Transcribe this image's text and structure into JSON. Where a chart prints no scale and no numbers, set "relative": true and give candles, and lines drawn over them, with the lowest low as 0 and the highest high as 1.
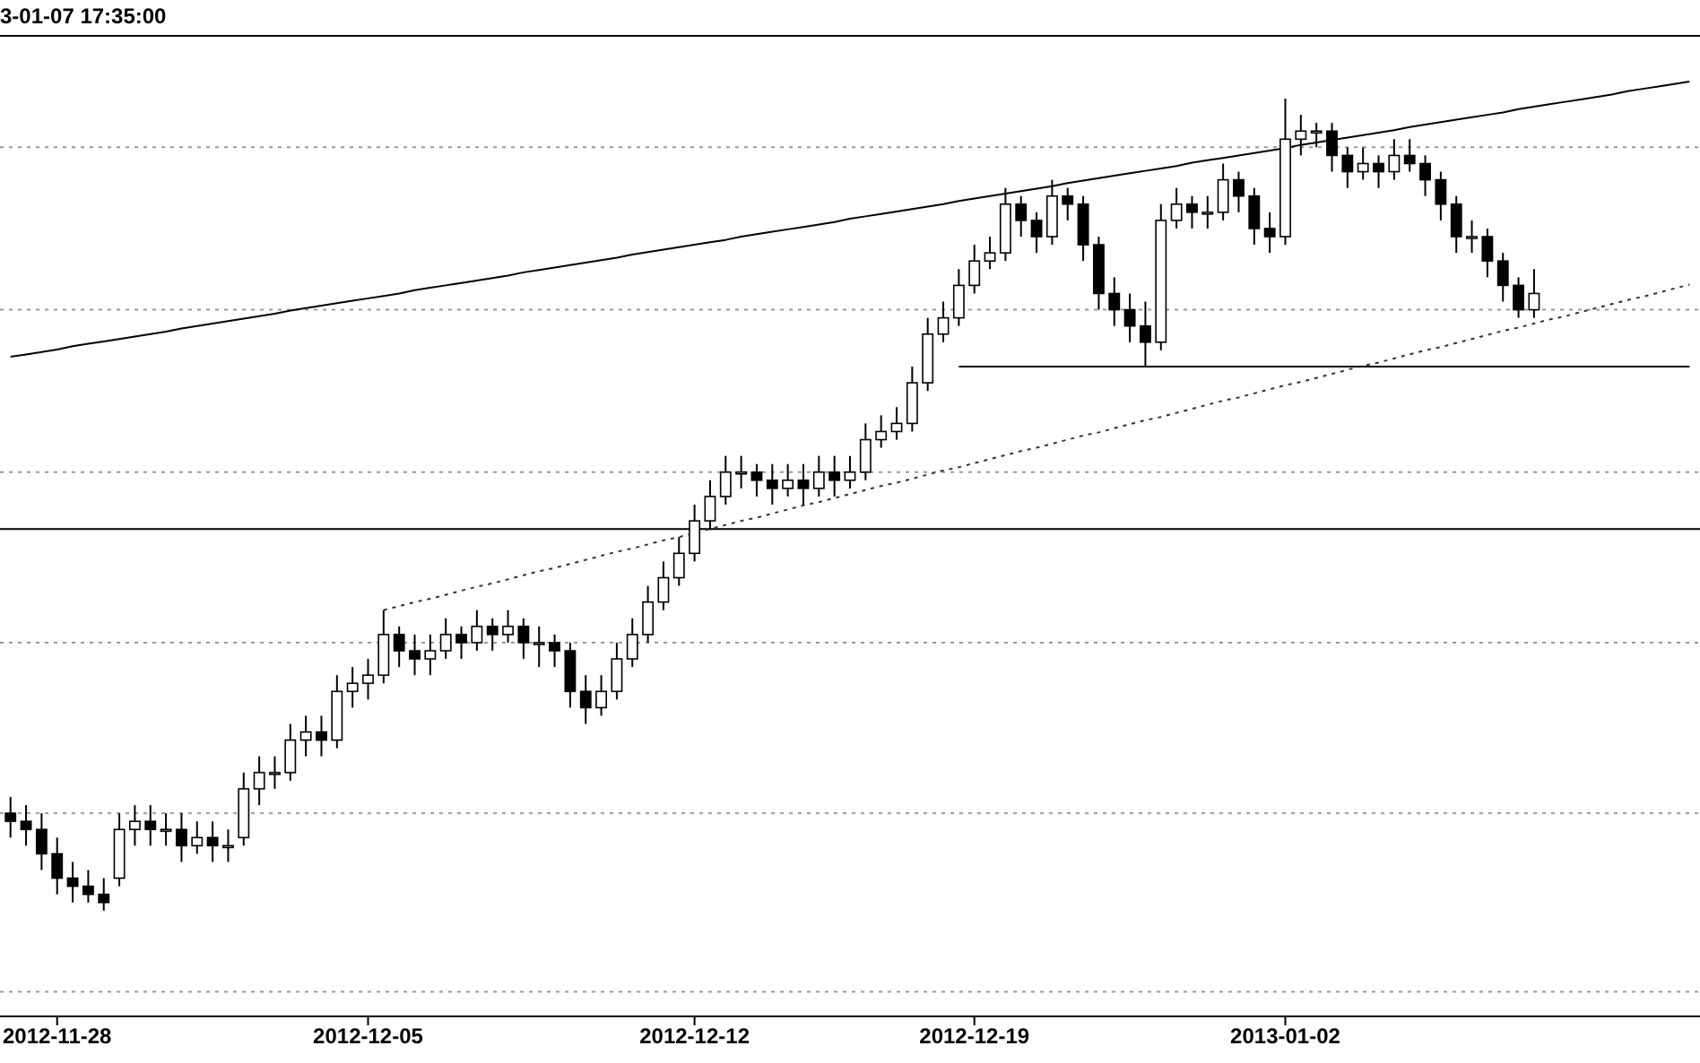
{
  "chart_data": {
    "type": "candlestick",
    "title": "3-01-07 17:35:00",
    "relative": true,
    "categories": [
      null,
      null,
      null,
      "2012-11-28",
      null,
      null,
      null,
      null,
      null,
      null,
      null,
      null,
      null,
      null,
      null,
      null,
      null,
      null,
      null,
      null,
      null,
      null,
      null,
      "2012-12-05",
      null,
      null,
      null,
      null,
      null,
      null,
      null,
      null,
      null,
      null,
      null,
      null,
      null,
      null,
      null,
      null,
      null,
      null,
      null,
      null,
      "2012-12-12",
      null,
      null,
      null,
      null,
      null,
      null,
      null,
      null,
      null,
      null,
      null,
      null,
      null,
      null,
      null,
      null,
      null,
      "2012-12-19",
      null,
      null,
      null,
      null,
      null,
      null,
      null,
      null,
      null,
      null,
      null,
      null,
      null,
      null,
      null,
      null,
      null,
      null,
      null,
      "2013-01-02",
      null,
      null,
      null,
      null,
      null,
      null,
      null,
      null,
      null,
      null,
      null,
      null,
      null,
      null,
      null,
      null,
      null,
      null,
      null,
      null,
      null,
      null,
      null,
      null,
      null,
      null
    ],
    "color": "#000000",
    "ohlc": [
      [
        0.12,
        0.14,
        0.09,
        0.11
      ],
      [
        0.11,
        0.13,
        0.08,
        0.1
      ],
      [
        0.1,
        0.12,
        0.05,
        0.07
      ],
      [
        0.07,
        0.09,
        0.02,
        0.04
      ],
      [
        0.04,
        0.06,
        0.01,
        0.03
      ],
      [
        0.03,
        0.05,
        0.01,
        0.02
      ],
      [
        0.02,
        0.04,
        0.0,
        0.01
      ],
      [
        0.04,
        0.12,
        0.03,
        0.1
      ],
      [
        0.1,
        0.13,
        0.08,
        0.11
      ],
      [
        0.11,
        0.13,
        0.08,
        0.1
      ],
      [
        0.1,
        0.12,
        0.08,
        0.1
      ],
      [
        0.1,
        0.12,
        0.06,
        0.08
      ],
      [
        0.08,
        0.11,
        0.07,
        0.09
      ],
      [
        0.09,
        0.11,
        0.06,
        0.08
      ],
      [
        0.08,
        0.1,
        0.06,
        0.08
      ],
      [
        0.09,
        0.17,
        0.08,
        0.15
      ],
      [
        0.15,
        0.19,
        0.13,
        0.17
      ],
      [
        0.17,
        0.19,
        0.15,
        0.17
      ],
      [
        0.17,
        0.23,
        0.16,
        0.21
      ],
      [
        0.21,
        0.24,
        0.19,
        0.22
      ],
      [
        0.22,
        0.24,
        0.19,
        0.21
      ],
      [
        0.21,
        0.29,
        0.2,
        0.27
      ],
      [
        0.27,
        0.3,
        0.25,
        0.28
      ],
      [
        0.28,
        0.31,
        0.26,
        0.29
      ],
      [
        0.29,
        0.37,
        0.28,
        0.34
      ],
      [
        0.34,
        0.35,
        0.3,
        0.32
      ],
      [
        0.32,
        0.34,
        0.29,
        0.31
      ],
      [
        0.31,
        0.34,
        0.29,
        0.32
      ],
      [
        0.32,
        0.36,
        0.31,
        0.34
      ],
      [
        0.34,
        0.35,
        0.31,
        0.33
      ],
      [
        0.33,
        0.37,
        0.32,
        0.35
      ],
      [
        0.35,
        0.36,
        0.32,
        0.34
      ],
      [
        0.34,
        0.37,
        0.33,
        0.35
      ],
      [
        0.35,
        0.36,
        0.31,
        0.33
      ],
      [
        0.33,
        0.35,
        0.3,
        0.33
      ],
      [
        0.33,
        0.34,
        0.3,
        0.32
      ],
      [
        0.32,
        0.33,
        0.25,
        0.27
      ],
      [
        0.27,
        0.29,
        0.23,
        0.25
      ],
      [
        0.25,
        0.29,
        0.24,
        0.27
      ],
      [
        0.27,
        0.33,
        0.26,
        0.31
      ],
      [
        0.31,
        0.36,
        0.3,
        0.34
      ],
      [
        0.34,
        0.4,
        0.33,
        0.38
      ],
      [
        0.38,
        0.43,
        0.37,
        0.41
      ],
      [
        0.41,
        0.46,
        0.4,
        0.44
      ],
      [
        0.44,
        0.5,
        0.43,
        0.48
      ],
      [
        0.48,
        0.53,
        0.47,
        0.51
      ],
      [
        0.51,
        0.56,
        0.5,
        0.54
      ],
      [
        0.54,
        0.56,
        0.52,
        0.54
      ],
      [
        0.54,
        0.55,
        0.51,
        0.53
      ],
      [
        0.53,
        0.55,
        0.5,
        0.52
      ],
      [
        0.52,
        0.55,
        0.51,
        0.53
      ],
      [
        0.53,
        0.55,
        0.5,
        0.52
      ],
      [
        0.52,
        0.56,
        0.51,
        0.54
      ],
      [
        0.54,
        0.56,
        0.51,
        0.53
      ],
      [
        0.53,
        0.56,
        0.52,
        0.54
      ],
      [
        0.54,
        0.6,
        0.53,
        0.58
      ],
      [
        0.58,
        0.61,
        0.57,
        0.59
      ],
      [
        0.59,
        0.62,
        0.58,
        0.6
      ],
      [
        0.6,
        0.67,
        0.59,
        0.65
      ],
      [
        0.65,
        0.73,
        0.64,
        0.71
      ],
      [
        0.71,
        0.75,
        0.7,
        0.73
      ],
      [
        0.73,
        0.79,
        0.72,
        0.77
      ],
      [
        0.77,
        0.82,
        0.76,
        0.8
      ],
      [
        0.8,
        0.83,
        0.79,
        0.81
      ],
      [
        0.81,
        0.89,
        0.8,
        0.87
      ],
      [
        0.87,
        0.88,
        0.83,
        0.85
      ],
      [
        0.85,
        0.86,
        0.81,
        0.83
      ],
      [
        0.83,
        0.9,
        0.82,
        0.88
      ],
      [
        0.88,
        0.89,
        0.85,
        0.87
      ],
      [
        0.87,
        0.88,
        0.8,
        0.82
      ],
      [
        0.82,
        0.83,
        0.74,
        0.76
      ],
      [
        0.76,
        0.78,
        0.72,
        0.74
      ],
      [
        0.74,
        0.76,
        0.7,
        0.72
      ],
      [
        0.72,
        0.75,
        0.67,
        0.7
      ],
      [
        0.7,
        0.87,
        0.69,
        0.85
      ],
      [
        0.85,
        0.89,
        0.84,
        0.87
      ],
      [
        0.87,
        0.88,
        0.84,
        0.86
      ],
      [
        0.86,
        0.88,
        0.84,
        0.86
      ],
      [
        0.86,
        0.92,
        0.85,
        0.9
      ],
      [
        0.9,
        0.91,
        0.86,
        0.88
      ],
      [
        0.88,
        0.89,
        0.82,
        0.84
      ],
      [
        0.84,
        0.86,
        0.81,
        0.83
      ],
      [
        0.83,
        1.0,
        0.82,
        0.95
      ],
      [
        0.95,
        0.98,
        0.93,
        0.96
      ],
      [
        0.96,
        0.97,
        0.94,
        0.96
      ],
      [
        0.96,
        0.97,
        0.91,
        0.93
      ],
      [
        0.93,
        0.94,
        0.89,
        0.91
      ],
      [
        0.91,
        0.94,
        0.9,
        0.92
      ],
      [
        0.92,
        0.93,
        0.89,
        0.91
      ],
      [
        0.91,
        0.95,
        0.9,
        0.93
      ],
      [
        0.93,
        0.95,
        0.91,
        0.92
      ],
      [
        0.92,
        0.93,
        0.88,
        0.9
      ],
      [
        0.9,
        0.91,
        0.85,
        0.87
      ],
      [
        0.87,
        0.88,
        0.81,
        0.83
      ],
      [
        0.83,
        0.85,
        0.81,
        0.83
      ],
      [
        0.83,
        0.84,
        0.78,
        0.8
      ],
      [
        0.8,
        0.81,
        0.75,
        0.77
      ],
      [
        0.77,
        0.78,
        0.73,
        0.74
      ],
      [
        0.74,
        0.79,
        0.73,
        0.76
      ],
      null,
      null,
      null,
      null,
      null,
      null,
      null,
      null,
      null,
      null
    ],
    "series": [
      {
        "type": "line",
        "color": "#000000",
        "line_style": "solid",
        "values": [
          0.682,
          0.685,
          0.688,
          0.691,
          0.695,
          0.698,
          0.701,
          0.704,
          0.707,
          0.71,
          0.713,
          0.717,
          0.72,
          0.723,
          0.726,
          0.729,
          0.732,
          0.735,
          0.739,
          0.742,
          0.745,
          0.748,
          0.751,
          0.754,
          0.757,
          0.76,
          0.764,
          0.767,
          0.77,
          0.773,
          0.776,
          0.779,
          0.782,
          0.786,
          0.789,
          0.792,
          0.795,
          0.798,
          0.801,
          0.804,
          0.808,
          0.811,
          0.814,
          0.817,
          0.82,
          0.823,
          0.826,
          0.83,
          0.833,
          0.836,
          0.839,
          0.842,
          0.845,
          0.848,
          0.852,
          0.855,
          0.858,
          0.861,
          0.864,
          0.867,
          0.87,
          0.874,
          0.877,
          0.88,
          0.883,
          0.886,
          0.889,
          0.892,
          0.896,
          0.899,
          0.902,
          0.905,
          0.908,
          0.911,
          0.914,
          0.917,
          0.921,
          0.924,
          0.927,
          0.93,
          0.933,
          0.936,
          0.939,
          0.943,
          0.946,
          0.949,
          0.952,
          0.955,
          0.958,
          0.961,
          0.965,
          0.968,
          0.971,
          0.974,
          0.977,
          0.98,
          0.983,
          0.987,
          0.99,
          0.993,
          0.996,
          0.999,
          1.002,
          1.005,
          1.009,
          1.012,
          1.015,
          1.018,
          1.021
        ]
      },
      {
        "type": "line",
        "color": "#333333",
        "line_style": "dotted",
        "values": [
          null,
          null,
          null,
          null,
          null,
          null,
          null,
          null,
          null,
          null,
          null,
          null,
          null,
          null,
          null,
          null,
          null,
          null,
          null,
          null,
          null,
          null,
          null,
          null,
          0.37,
          0.375,
          0.38,
          0.384,
          0.389,
          0.394,
          0.399,
          0.403,
          0.408,
          0.413,
          0.418,
          0.422,
          0.427,
          0.432,
          0.437,
          0.442,
          0.446,
          0.451,
          0.456,
          0.46,
          0.465,
          0.47,
          0.475,
          0.48,
          0.484,
          0.489,
          0.494,
          0.499,
          0.503,
          0.508,
          0.513,
          0.518,
          0.523,
          0.527,
          0.532,
          0.537,
          0.542,
          0.546,
          0.551,
          0.556,
          0.561,
          0.566,
          0.57,
          0.575,
          0.58,
          0.585,
          0.589,
          0.594,
          0.599,
          0.604,
          0.608,
          0.613,
          0.618,
          0.623,
          0.628,
          0.632,
          0.637,
          0.642,
          0.647,
          0.651,
          0.656,
          0.661,
          0.666,
          0.671,
          0.675,
          0.68,
          0.685,
          0.69,
          0.694,
          0.699,
          0.704,
          0.709,
          0.714,
          0.718,
          0.723,
          0.728,
          0.732,
          0.737,
          0.742,
          0.747,
          0.752,
          0.756,
          0.761,
          0.766,
          0.771
        ]
      },
      {
        "type": "line",
        "color": "#000000",
        "line_style": "solid",
        "values": [
          null,
          null,
          null,
          null,
          null,
          null,
          null,
          null,
          null,
          null,
          null,
          null,
          null,
          null,
          null,
          null,
          null,
          null,
          null,
          null,
          null,
          null,
          null,
          null,
          null,
          null,
          null,
          null,
          null,
          null,
          null,
          null,
          null,
          null,
          null,
          null,
          null,
          null,
          null,
          null,
          null,
          null,
          null,
          null,
          null,
          null,
          null,
          null,
          null,
          null,
          null,
          null,
          null,
          null,
          null,
          null,
          null,
          null,
          null,
          null,
          null,
          0.67,
          0.67,
          0.67,
          0.67,
          0.67,
          0.67,
          0.67,
          0.67,
          0.67,
          0.67,
          0.67,
          0.67,
          0.67,
          0.67,
          0.67,
          0.67,
          0.67,
          0.67,
          0.67,
          0.67,
          0.67,
          0.67,
          0.67,
          0.67,
          0.67,
          0.67,
          0.67,
          0.67,
          0.67,
          0.67,
          0.67,
          0.67,
          0.67,
          0.67,
          0.67,
          0.67,
          0.67,
          0.67,
          0.67,
          0.67,
          0.67,
          0.67,
          0.67,
          0.67,
          0.67,
          0.67,
          0.67,
          0.67
        ]
      }
    ],
    "ref_lines": [
      {
        "axis": "y",
        "value": 0.94,
        "color": "#9a9a9a",
        "line_style": "dotted"
      },
      {
        "axis": "y",
        "value": 0.74,
        "color": "#9a9a9a",
        "line_style": "dotted"
      },
      {
        "axis": "y",
        "value": 0.54,
        "color": "#9a9a9a",
        "line_style": "dotted"
      },
      {
        "axis": "y",
        "value": 0.47,
        "color": "#000000",
        "line_style": "solid"
      },
      {
        "axis": "y",
        "value": 0.33,
        "color": "#9a9a9a",
        "line_style": "dotted"
      },
      {
        "axis": "y",
        "value": 0.12,
        "color": "#9a9a9a",
        "line_style": "dotted"
      },
      {
        "axis": "y",
        "value": -0.1,
        "color": "#9a9a9a",
        "line_style": "dotted"
      }
    ]
  }
}
